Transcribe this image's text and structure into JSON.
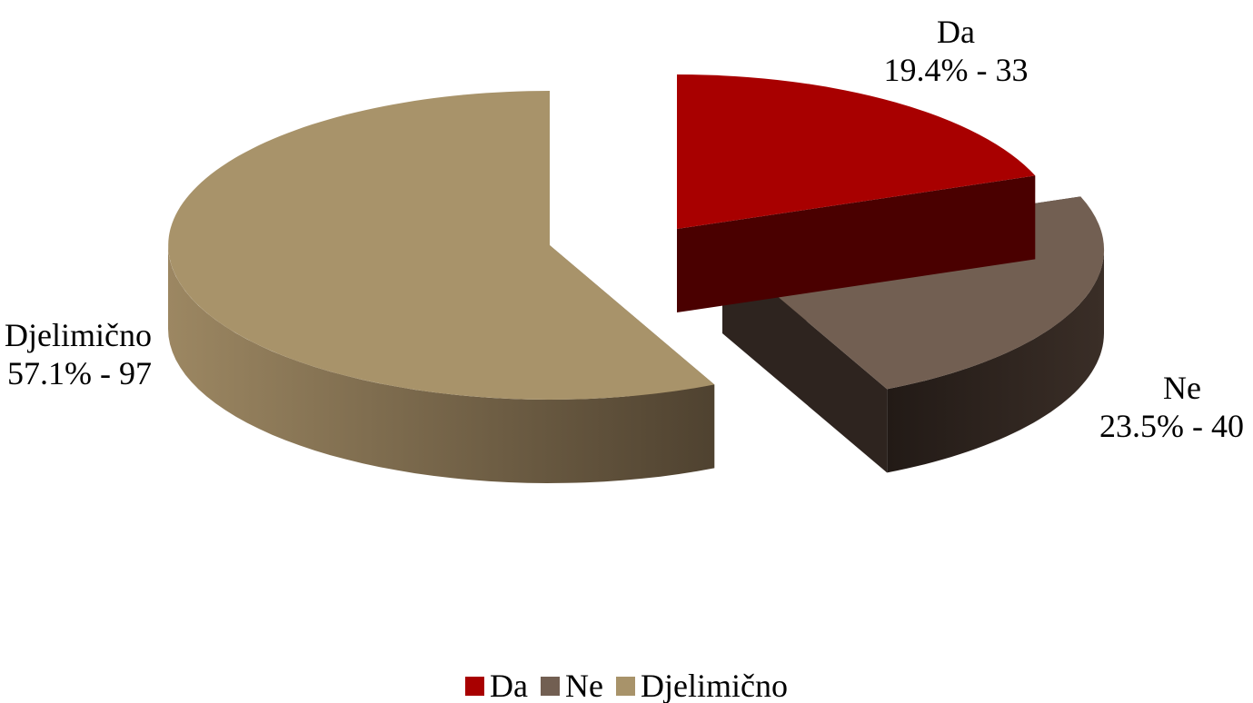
{
  "chart_data": {
    "type": "pie",
    "style": "3d-exploded",
    "slices": [
      {
        "name": "Da",
        "percent": 19.4,
        "count": 33,
        "value_label": "19.4% - 33",
        "color": "#a80000",
        "side_color": "#4a0000"
      },
      {
        "name": "Ne",
        "percent": 23.5,
        "count": 40,
        "value_label": "23.5% - 40",
        "color": "#725f52",
        "side_color": "#2e241f"
      },
      {
        "name": "Djelimično",
        "percent": 57.1,
        "count": 97,
        "value_label": "57.1% - 97",
        "color": "#a8936a",
        "side_color": "#6c5b41"
      }
    ],
    "legend_position": "bottom",
    "legend": [
      "Da",
      "Ne",
      "Djelimično"
    ]
  }
}
